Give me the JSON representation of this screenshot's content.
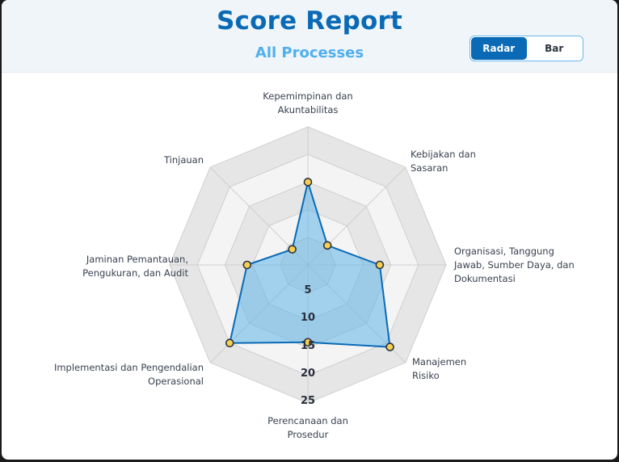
{
  "header": {
    "title": "Score Report",
    "subtitle": "All Processes"
  },
  "view_toggle": {
    "options": [
      {
        "label": "Radar",
        "active": true
      },
      {
        "label": "Bar",
        "active": false
      }
    ]
  },
  "colors": {
    "title": "#0a6ab5",
    "subtitle": "#4fb0ee",
    "series_line": "#0a6ab5",
    "series_fill": "#5fb4ea",
    "point_fill": "#f7cf4f",
    "point_stroke": "#2b3442",
    "ring_dark": "#e6e6e6",
    "ring_light": "#f4f4f4"
  },
  "chart_data": {
    "type": "radar",
    "title": "Score Report",
    "subtitle": "All Processes",
    "categories": [
      "Kepemimpinan dan Akuntabilitas",
      "Kebijakan dan Sasaran",
      "Organisasi, Tanggung Jawab, Sumber Daya, dan Dokumentasi",
      "Manajemen Risiko",
      "Perencanaan dan Prosedur",
      "Implementasi dan Pengendalian Operasional",
      "Jaminan Pemantauan, Pengukuran, dan Audit",
      "Tinjauan"
    ],
    "series": [
      {
        "name": "Score",
        "values": [
          15,
          5,
          13,
          21,
          14,
          20,
          11,
          4
        ]
      }
    ],
    "radial_ticks": [
      "5",
      "10",
      "15",
      "20",
      "25"
    ],
    "rlim": [
      0,
      25
    ],
    "grid": true
  },
  "axis_labels": [
    [
      "Kepemimpinan dan",
      "Akuntabilitas"
    ],
    [
      "Kebijakan dan",
      "Sasaran"
    ],
    [
      "Organisasi, Tanggung",
      "Jawab, Sumber Daya, dan",
      "Dokumentasi"
    ],
    [
      "Manajemen",
      "Risiko"
    ],
    [
      "Perencanaan dan",
      "Prosedur"
    ],
    [
      "Implementasi dan Pengendalian",
      "Operasional"
    ],
    [
      "Jaminan Pemantauan,",
      "Pengukuran, dan Audit"
    ],
    [
      "Tinjauan"
    ]
  ]
}
